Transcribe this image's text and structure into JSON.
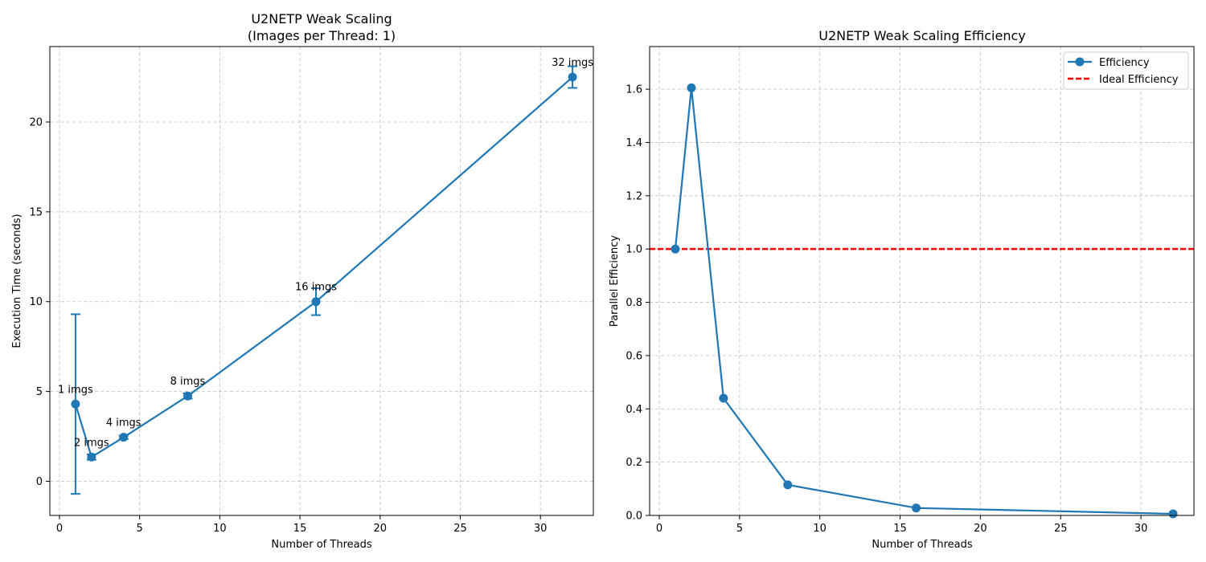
{
  "chart_data": [
    {
      "type": "line",
      "title": "U2NETP Weak Scaling",
      "subtitle": "(Images per Thread: 1)",
      "xlabel": "Number of Threads",
      "ylabel": "Execution Time (seconds)",
      "xlim": [
        -0.6,
        33.3
      ],
      "ylim": [
        -1.9,
        24.2
      ],
      "xticks": [
        0,
        5,
        10,
        15,
        20,
        25,
        30
      ],
      "yticks": [
        0,
        5,
        10,
        15,
        20
      ],
      "grid": true,
      "color": "#1f77b4",
      "series": [
        {
          "x": [
            1,
            2,
            4,
            8,
            16,
            32
          ],
          "y": [
            4.3,
            1.35,
            2.45,
            4.75,
            10.0,
            22.5
          ],
          "error": [
            5.0,
            0.15,
            0.1,
            0.15,
            0.75,
            0.6
          ],
          "labels": [
            "1 imgs",
            "2 imgs",
            "4 imgs",
            "8 imgs",
            "16 imgs",
            "32 imgs"
          ]
        }
      ]
    },
    {
      "type": "line",
      "title": "U2NETP Weak Scaling Efficiency",
      "xlabel": "Number of Threads",
      "ylabel": "Parallel Efficiency",
      "xlim": [
        -0.6,
        33.3
      ],
      "ylim": [
        0,
        1.76
      ],
      "xticks": [
        0,
        5,
        10,
        15,
        20,
        25,
        30
      ],
      "yticks": [
        0.0,
        0.2,
        0.4,
        0.6,
        0.8,
        1.0,
        1.2,
        1.4,
        1.6
      ],
      "grid": true,
      "legend_position": "top-right",
      "series": [
        {
          "name": "Efficiency",
          "color": "#1f77b4",
          "x": [
            1,
            2,
            4,
            8,
            16,
            32
          ],
          "y": [
            1.0,
            1.605,
            0.44,
            0.115,
            0.028,
            0.006
          ]
        }
      ],
      "reference_line": {
        "name": "Ideal Efficiency",
        "y": 1.0,
        "color": "#ff0000",
        "style": "dashed"
      }
    }
  ]
}
